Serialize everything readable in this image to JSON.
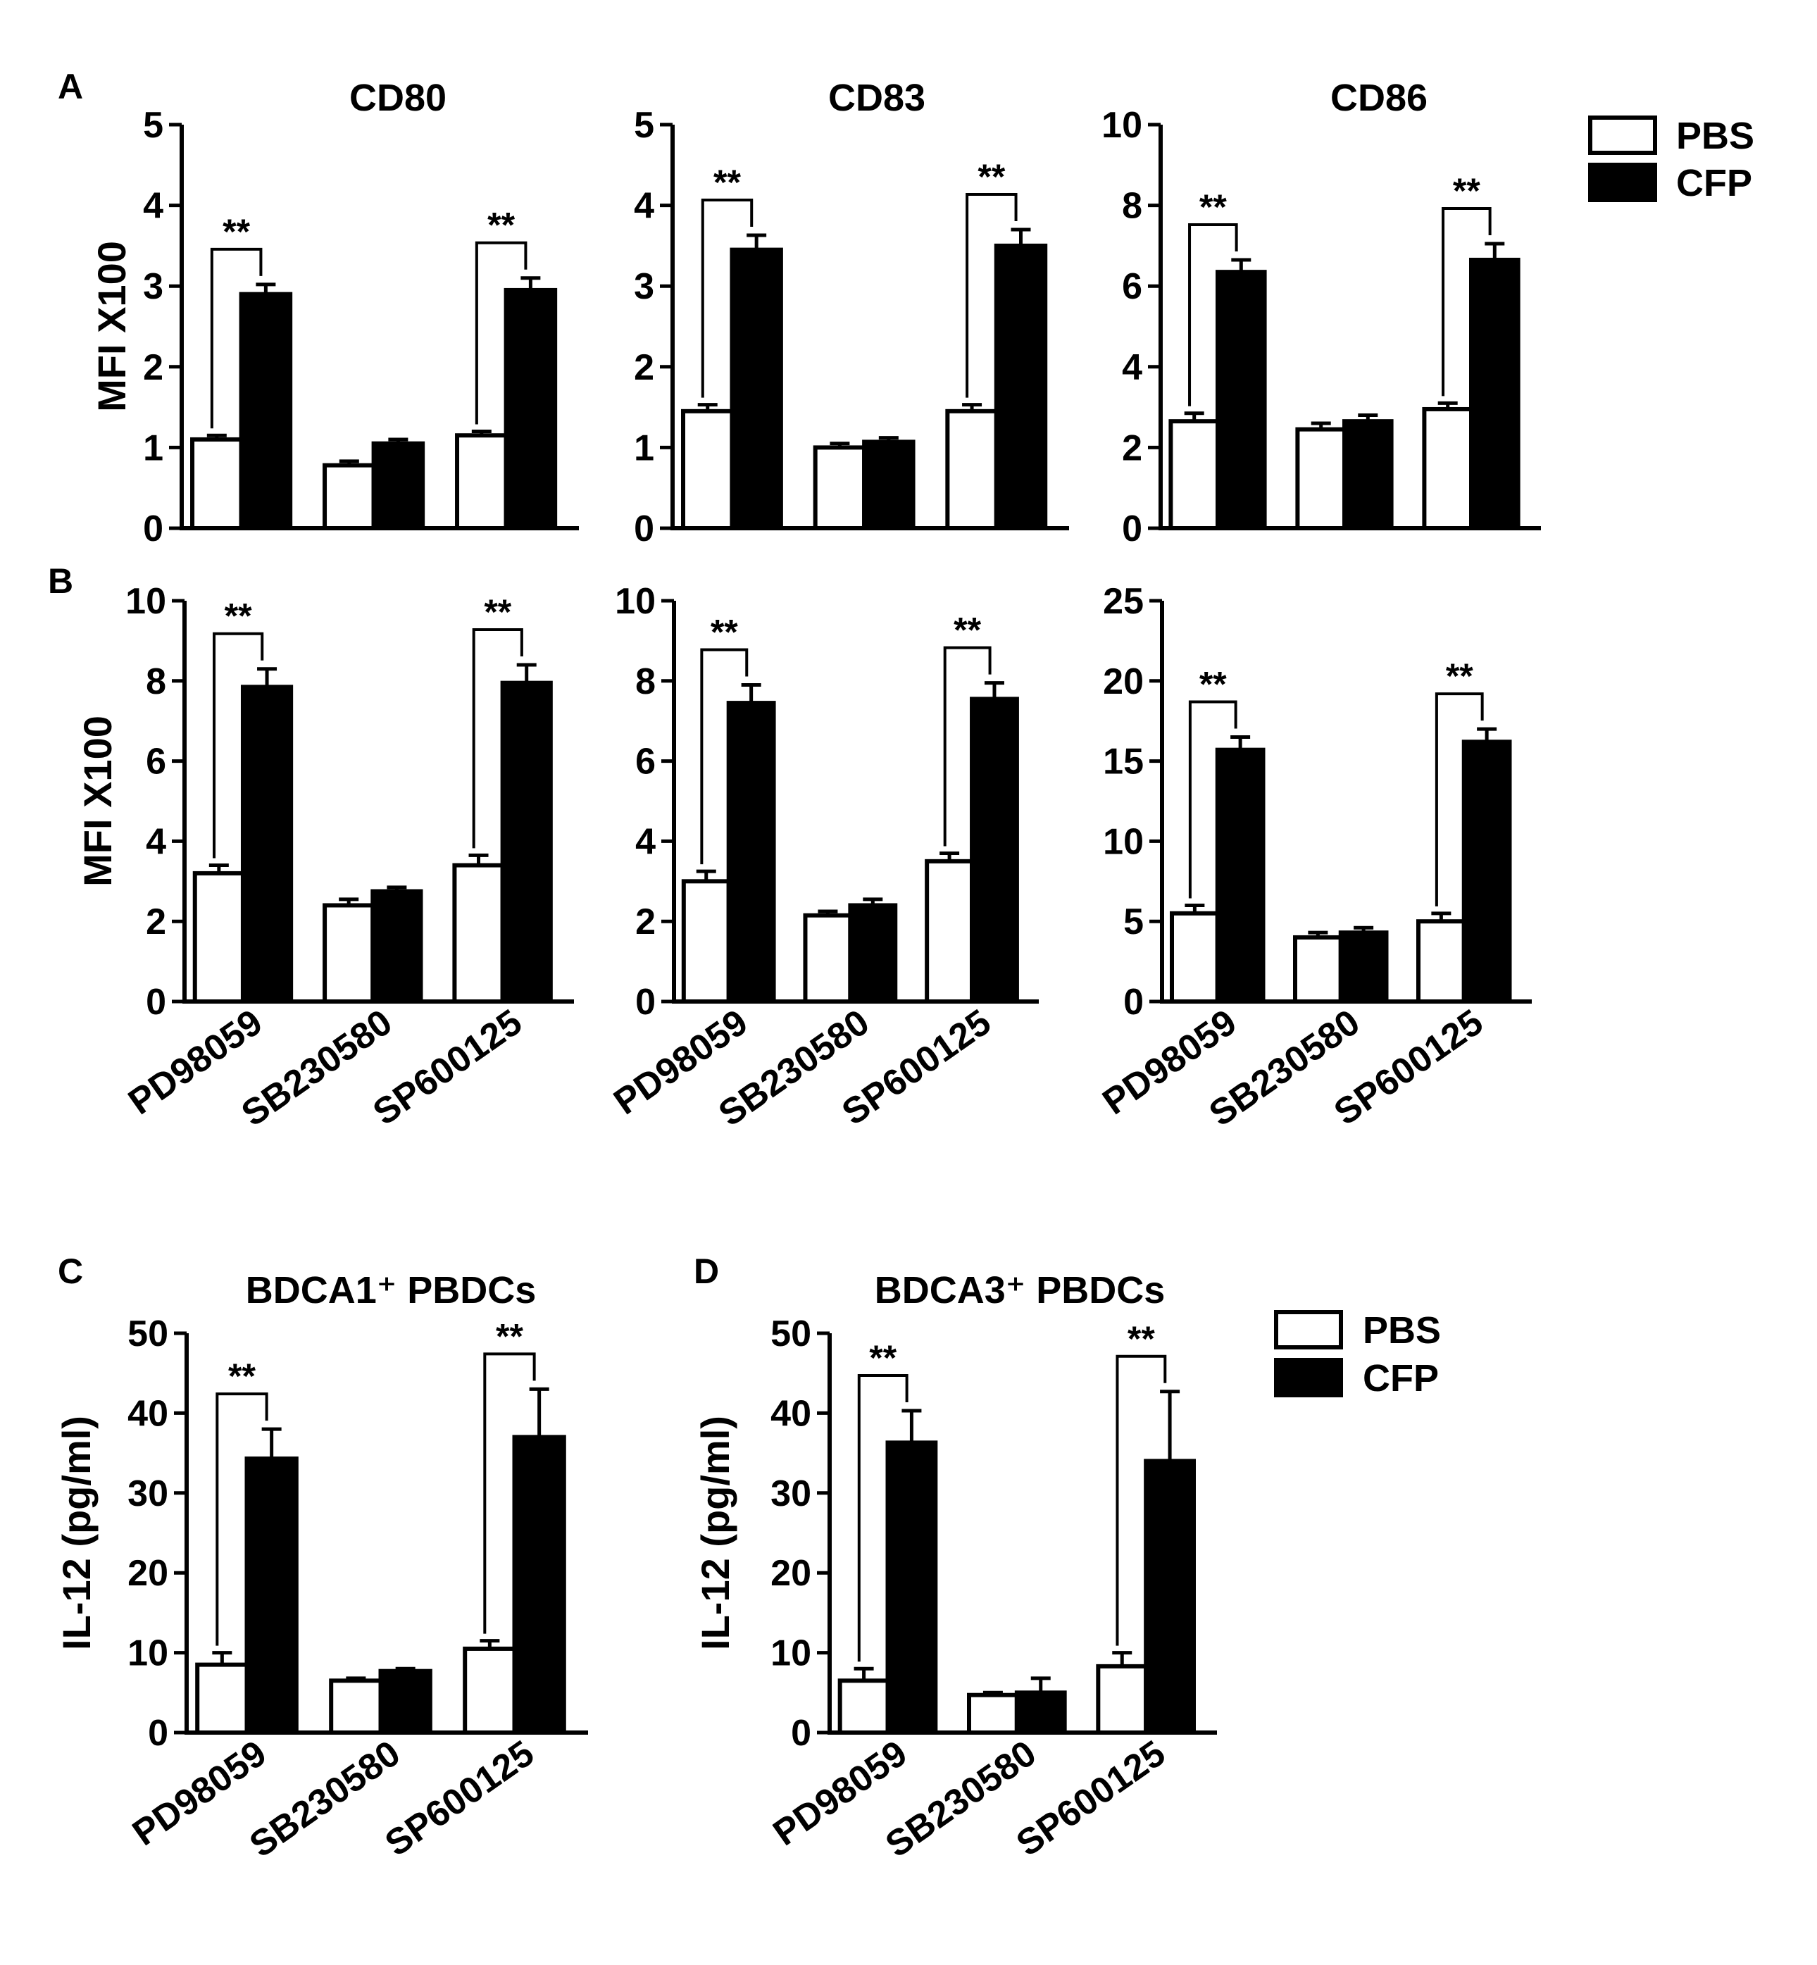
{
  "figure": {
    "panels": [
      {
        "letter": "A"
      },
      {
        "letter": "B"
      },
      {
        "letter": "C"
      },
      {
        "letter": "D"
      }
    ]
  },
  "legends": [
    {
      "items": [
        {
          "label": "PBS",
          "color": "#ffffff"
        },
        {
          "label": "CFP",
          "color": "#000000"
        }
      ]
    },
    {
      "items": [
        {
          "label": "PBS",
          "color": "#ffffff"
        },
        {
          "label": "CFP",
          "color": "#000000"
        }
      ]
    }
  ],
  "chart_data": [
    {
      "panel": "A",
      "type": "bar",
      "title": "CD80",
      "ylabel": "MFI X100",
      "ylim": [
        0,
        5
      ],
      "yticks": [
        0,
        1,
        2,
        3,
        4,
        5
      ],
      "categories": [
        "PD98059",
        "SB230580",
        "SP600125"
      ],
      "show_xticks": false,
      "series": [
        {
          "name": "PBS",
          "color": "#ffffff",
          "values": [
            1.1,
            0.78,
            1.15
          ],
          "errors": [
            0.05,
            0.05,
            0.05
          ]
        },
        {
          "name": "CFP",
          "color": "#000000",
          "values": [
            2.9,
            1.05,
            2.95
          ],
          "errors": [
            0.12,
            0.05,
            0.15
          ]
        }
      ],
      "significance": [
        {
          "category": 0,
          "label": "**"
        },
        {
          "category": 2,
          "label": "**"
        }
      ]
    },
    {
      "panel": "A",
      "type": "bar",
      "title": "CD83",
      "ylabel": "",
      "ylim": [
        0,
        5
      ],
      "yticks": [
        0,
        1,
        2,
        3,
        4,
        5
      ],
      "categories": [
        "PD98059",
        "SB230580",
        "SP600125"
      ],
      "show_xticks": false,
      "series": [
        {
          "name": "PBS",
          "color": "#ffffff",
          "values": [
            1.45,
            1.0,
            1.45
          ],
          "errors": [
            0.08,
            0.05,
            0.08
          ]
        },
        {
          "name": "CFP",
          "color": "#000000",
          "values": [
            3.45,
            1.07,
            3.5
          ],
          "errors": [
            0.18,
            0.05,
            0.2
          ]
        }
      ],
      "significance": [
        {
          "category": 0,
          "label": "**"
        },
        {
          "category": 2,
          "label": "**"
        }
      ]
    },
    {
      "panel": "A",
      "type": "bar",
      "title": "CD86",
      "ylabel": "",
      "ylim": [
        0,
        10
      ],
      "yticks": [
        0,
        2,
        4,
        6,
        8,
        10
      ],
      "categories": [
        "PD98059",
        "SB230580",
        "SP600125"
      ],
      "show_xticks": false,
      "series": [
        {
          "name": "PBS",
          "color": "#ffffff",
          "values": [
            2.65,
            2.45,
            2.95
          ],
          "errors": [
            0.2,
            0.15,
            0.15
          ]
        },
        {
          "name": "CFP",
          "color": "#000000",
          "values": [
            6.35,
            2.65,
            6.65
          ],
          "errors": [
            0.3,
            0.15,
            0.4
          ]
        }
      ],
      "significance": [
        {
          "category": 0,
          "label": "**"
        },
        {
          "category": 2,
          "label": "**"
        }
      ]
    },
    {
      "panel": "B",
      "type": "bar",
      "title": "",
      "ylabel": "MFI X100",
      "ylim": [
        0,
        10
      ],
      "yticks": [
        0,
        2,
        4,
        6,
        8,
        10
      ],
      "categories": [
        "PD98059",
        "SB230580",
        "SP600125"
      ],
      "show_xticks": true,
      "series": [
        {
          "name": "PBS",
          "color": "#ffffff",
          "values": [
            3.2,
            2.4,
            3.4
          ],
          "errors": [
            0.2,
            0.15,
            0.25
          ]
        },
        {
          "name": "CFP",
          "color": "#000000",
          "values": [
            7.85,
            2.75,
            7.95
          ],
          "errors": [
            0.45,
            0.1,
            0.45
          ]
        }
      ],
      "significance": [
        {
          "category": 0,
          "label": "**"
        },
        {
          "category": 2,
          "label": "**"
        }
      ]
    },
    {
      "panel": "B",
      "type": "bar",
      "title": "",
      "ylabel": "",
      "ylim": [
        0,
        10
      ],
      "yticks": [
        0,
        2,
        4,
        6,
        8,
        10
      ],
      "categories": [
        "PD98059",
        "SB230580",
        "SP600125"
      ],
      "show_xticks": true,
      "series": [
        {
          "name": "PBS",
          "color": "#ffffff",
          "values": [
            3.0,
            2.15,
            3.5
          ],
          "errors": [
            0.25,
            0.1,
            0.2
          ]
        },
        {
          "name": "CFP",
          "color": "#000000",
          "values": [
            7.45,
            2.4,
            7.55
          ],
          "errors": [
            0.45,
            0.15,
            0.4
          ]
        }
      ],
      "significance": [
        {
          "category": 0,
          "label": "**"
        },
        {
          "category": 2,
          "label": "**"
        }
      ]
    },
    {
      "panel": "B",
      "type": "bar",
      "title": "",
      "ylabel": "",
      "ylim": [
        0,
        25
      ],
      "yticks": [
        0,
        5,
        10,
        15,
        20,
        25
      ],
      "categories": [
        "PD98059",
        "SB230580",
        "SP600125"
      ],
      "show_xticks": true,
      "series": [
        {
          "name": "PBS",
          "color": "#ffffff",
          "values": [
            5.5,
            4.0,
            5.0
          ],
          "errors": [
            0.5,
            0.3,
            0.5
          ]
        },
        {
          "name": "CFP",
          "color": "#000000",
          "values": [
            15.7,
            4.3,
            16.2
          ],
          "errors": [
            0.8,
            0.3,
            0.8
          ]
        }
      ],
      "significance": [
        {
          "category": 0,
          "label": "**"
        },
        {
          "category": 2,
          "label": "**"
        }
      ]
    },
    {
      "panel": "C",
      "type": "bar",
      "title": "BDCA1⁺ PBDCs",
      "ylabel": "IL-12 (pg/ml)",
      "ylim": [
        0,
        50
      ],
      "yticks": [
        0,
        10,
        20,
        30,
        40,
        50
      ],
      "categories": [
        "PD98059",
        "SB230580",
        "SP600125"
      ],
      "show_xticks": true,
      "series": [
        {
          "name": "PBS",
          "color": "#ffffff",
          "values": [
            8.5,
            6.5,
            10.5
          ],
          "errors": [
            1.5,
            0.3,
            1.0
          ]
        },
        {
          "name": "CFP",
          "color": "#000000",
          "values": [
            34.3,
            7.7,
            37.0
          ],
          "errors": [
            3.7,
            0.3,
            6.0
          ]
        }
      ],
      "significance": [
        {
          "category": 0,
          "label": "**"
        },
        {
          "category": 2,
          "label": "**"
        }
      ]
    },
    {
      "panel": "D",
      "type": "bar",
      "title": "BDCA3⁺ PBDCs",
      "ylabel": "IL-12 (pg/ml)",
      "ylim": [
        0,
        50
      ],
      "yticks": [
        0,
        10,
        20,
        30,
        40,
        50
      ],
      "categories": [
        "PD98059",
        "SB230580",
        "SP600125"
      ],
      "show_xticks": true,
      "series": [
        {
          "name": "PBS",
          "color": "#ffffff",
          "values": [
            6.5,
            4.7,
            8.3
          ],
          "errors": [
            1.5,
            0.3,
            1.7
          ]
        },
        {
          "name": "CFP",
          "color": "#000000",
          "values": [
            36.3,
            5.0,
            34.0
          ],
          "errors": [
            4.0,
            1.8,
            8.7
          ]
        }
      ],
      "significance": [
        {
          "category": 0,
          "label": "**"
        },
        {
          "category": 2,
          "label": "**"
        }
      ]
    }
  ]
}
